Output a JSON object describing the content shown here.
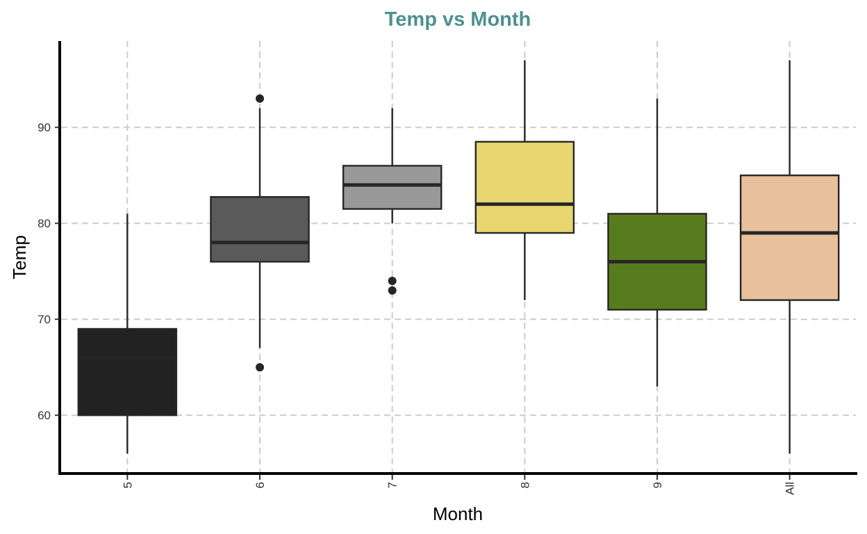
{
  "chart_data": {
    "type": "box",
    "title": "Temp vs Month",
    "xlabel": "Month",
    "ylabel": "Temp",
    "categories": [
      "5",
      "6",
      "7",
      "8",
      "9",
      "All"
    ],
    "ylim": [
      54,
      99
    ],
    "yticks": [
      60,
      70,
      80,
      90
    ],
    "grid": true,
    "colors": {
      "title": "#4e9090",
      "boxes": [
        "#222222",
        "#5a5a5a",
        "#999999",
        "#e8d56f",
        "#587b1d",
        "#e8c09b"
      ]
    },
    "boxes": [
      {
        "category": "5",
        "whisker_low": 56,
        "q1": 60,
        "median": 66,
        "q3": 69,
        "whisker_high": 81,
        "outliers": []
      },
      {
        "category": "6",
        "whisker_low": 67,
        "q1": 76,
        "median": 78,
        "q3": 82.75,
        "whisker_high": 92,
        "outliers": [
          65,
          93
        ]
      },
      {
        "category": "7",
        "whisker_low": 80,
        "q1": 81.5,
        "median": 84,
        "q3": 86,
        "whisker_high": 92,
        "outliers": [
          73,
          74
        ]
      },
      {
        "category": "8",
        "whisker_low": 72,
        "q1": 79,
        "median": 82,
        "q3": 88.5,
        "whisker_high": 97,
        "outliers": []
      },
      {
        "category": "9",
        "whisker_low": 63,
        "q1": 71,
        "median": 76,
        "q3": 81,
        "whisker_high": 93,
        "outliers": []
      },
      {
        "category": "All",
        "whisker_low": 56,
        "q1": 72,
        "median": 79,
        "q3": 85,
        "whisker_high": 97,
        "outliers": []
      }
    ]
  }
}
